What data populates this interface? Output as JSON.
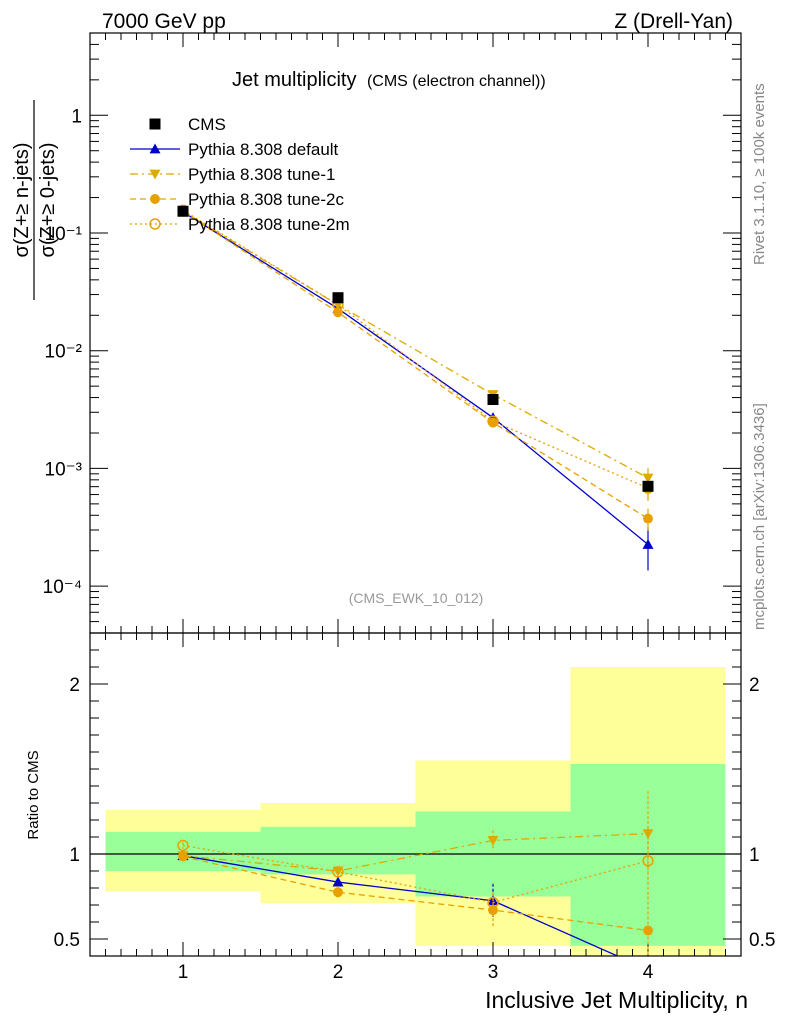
{
  "header": {
    "left": "7000 GeV pp",
    "right": "Z (Drell-Yan)"
  },
  "side_labels": {
    "rivet": "Rivet 3.1.10, ≥ 100k events",
    "mcplots": "mcplots.cern.ch [arXiv:1306.3436]"
  },
  "chart_data": {
    "type": "line",
    "title": "Jet multiplicity",
    "subtitle": "(CMS (electron channel))",
    "analysis_tag": "(CMS_EWK_10_012)",
    "xlabel": "Inclusive Jet Multiplicity, n",
    "ylabel_num": "σ(Z+≥ n-jets)",
    "ylabel_den": "σ(Z+≥ 0-jets)",
    "ratio_ylabel": "Ratio to CMS",
    "x": [
      1,
      2,
      3,
      4
    ],
    "xlim": [
      0.4,
      4.6
    ],
    "ylim": [
      4e-05,
      5
    ],
    "yscale": "log",
    "x_ticks": [
      "1",
      "2",
      "3",
      "4"
    ],
    "y_ticks_main": [
      "10⁻⁴",
      "10⁻³",
      "10⁻²",
      "10⁻¹",
      "1"
    ],
    "ratio_ylim": [
      0.4,
      2.3
    ],
    "ratio_ticks": [
      "0.5",
      "1",
      "2"
    ],
    "legend_position": "top-left",
    "data": {
      "name": "CMS",
      "values": [
        0.153,
        0.0282,
        0.00385,
        0.000705
      ],
      "ratio_band_inner": [
        [
          0.9,
          1.13
        ],
        [
          0.88,
          1.16
        ],
        [
          0.75,
          1.25
        ],
        [
          0.46,
          1.53
        ]
      ],
      "ratio_band_outer": [
        [
          0.78,
          1.26
        ],
        [
          0.71,
          1.3
        ],
        [
          0.46,
          1.55
        ],
        [
          0.2,
          2.1
        ]
      ]
    },
    "series": [
      {
        "name": "Pythia 8.308 default",
        "color": "#0000cc",
        "marker": "triangle-up",
        "line": "solid",
        "values": [
          0.151,
          0.0228,
          0.0027,
          0.000226
        ],
        "errors": [
          0.003,
          0.0006,
          0.0002,
          9e-05
        ],
        "ratio": [
          0.99,
          0.835,
          0.725,
          0.32
        ],
        "ratio_err": [
          0.02,
          0.02,
          0.1,
          0.0
        ]
      },
      {
        "name": "Pythia 8.308 tune-1",
        "color": "#ddaa00",
        "marker": "triangle-down",
        "line": "dashdot",
        "values": [
          0.153,
          0.0245,
          0.00425,
          0.00083
        ],
        "errors": [
          0.003,
          0.0006,
          0.00025,
          0.00018
        ],
        "ratio": [
          0.99,
          0.9,
          1.08,
          1.12
        ],
        "ratio_err": [
          0.02,
          0.02,
          0.06,
          0.25
        ]
      },
      {
        "name": "Pythia 8.308 tune-2c",
        "color": "#e8a000",
        "marker": "circle",
        "line": "dashed",
        "values": [
          0.152,
          0.0212,
          0.00245,
          0.000375
        ],
        "errors": [
          0.003,
          0.0006,
          0.0002,
          8e-05
        ],
        "ratio": [
          0.985,
          0.775,
          0.67,
          0.55
        ],
        "ratio_err": [
          0.02,
          0.03,
          0.1,
          0.2
        ]
      },
      {
        "name": "Pythia 8.308 tune-2m",
        "color": "#e8a000",
        "marker": "open-circle",
        "line": "dotted",
        "values": [
          0.156,
          0.0246,
          0.00252,
          0.00068
        ],
        "errors": [
          0.003,
          0.0006,
          0.0002,
          0.00015
        ],
        "ratio": [
          1.05,
          0.895,
          0.715,
          0.96
        ],
        "ratio_err": [
          0.02,
          0.03,
          0.06,
          0.2
        ]
      }
    ]
  }
}
